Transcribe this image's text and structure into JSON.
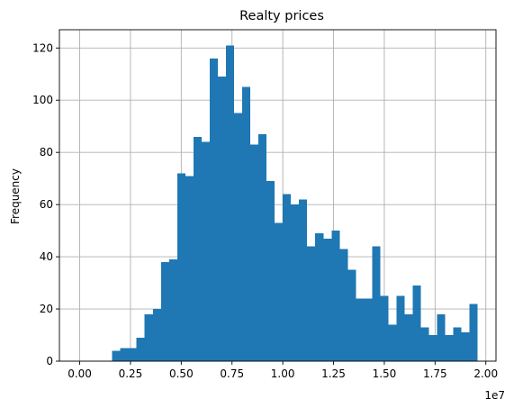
{
  "chart_data": {
    "type": "bar",
    "title": "Realty prices",
    "xlabel": "",
    "ylabel": "Frequency",
    "x_offset_label": "1e7",
    "xlim": [
      -0.1,
      2.05
    ],
    "ylim": [
      0,
      127
    ],
    "x_scale": 10000000,
    "x_ticks": [
      0.0,
      0.25,
      0.5,
      0.75,
      1.0,
      1.25,
      1.5,
      1.75,
      2.0
    ],
    "x_tick_labels": [
      "0.00",
      "0.25",
      "0.50",
      "0.75",
      "1.00",
      "1.25",
      "1.50",
      "1.75",
      "2.00"
    ],
    "y_ticks": [
      0,
      20,
      40,
      60,
      80,
      100,
      120
    ],
    "y_tick_labels": [
      "0",
      "20",
      "40",
      "60",
      "80",
      "100",
      "120"
    ],
    "grid": true,
    "bar_color": "#1f77b4",
    "bins": {
      "start": 0.0,
      "width": 0.04,
      "counts": [
        0,
        0,
        0,
        0,
        4,
        5,
        5,
        9,
        18,
        20,
        38,
        39,
        72,
        71,
        86,
        84,
        116,
        109,
        121,
        95,
        105,
        83,
        87,
        69,
        53,
        64,
        60,
        62,
        44,
        49,
        47,
        50,
        43,
        35,
        24,
        24,
        44,
        25,
        14,
        25,
        18,
        29,
        13,
        10,
        18,
        10,
        13,
        11,
        22,
        0
      ]
    }
  }
}
